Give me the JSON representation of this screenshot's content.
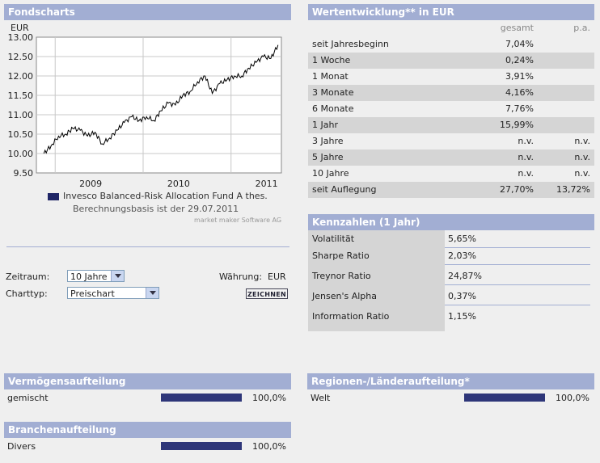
{
  "fondscharts": {
    "title": "Fondscharts",
    "currency_label": "EUR",
    "legend_label": "Invesco Balanced-Risk Allocation Fund A thes.",
    "basis_text": "Berechnungsbasis ist der 29.07.2011",
    "credit": "market maker Software AG"
  },
  "chart_data": {
    "type": "line",
    "title": "",
    "ylabel": "EUR",
    "ylim": [
      9.5,
      13.0
    ],
    "yticks": [
      "13.00",
      "12.50",
      "12.00",
      "11.50",
      "11.00",
      "10.50",
      "10.00",
      "9.50"
    ],
    "xticks": [
      "2009",
      "2010",
      "2011"
    ],
    "grid": true,
    "series": [
      {
        "name": "Invesco Balanced-Risk Allocation Fund A thes.",
        "color": "#000000",
        "x": [
          "2008-11",
          "2008-12",
          "2009-01",
          "2009-02",
          "2009-03",
          "2009-04",
          "2009-05",
          "2009-06",
          "2009-07",
          "2009-08",
          "2009-09",
          "2009-10",
          "2009-11",
          "2009-12",
          "2010-01",
          "2010-02",
          "2010-03",
          "2010-04",
          "2010-05",
          "2010-06",
          "2010-07",
          "2010-08",
          "2010-09",
          "2010-10",
          "2010-11",
          "2010-12",
          "2011-01",
          "2011-02",
          "2011-03",
          "2011-04",
          "2011-05",
          "2011-06",
          "2011-07"
        ],
        "values": [
          10.0,
          10.2,
          10.45,
          10.5,
          10.65,
          10.6,
          10.45,
          10.55,
          10.25,
          10.4,
          10.6,
          10.8,
          10.95,
          10.85,
          10.95,
          10.85,
          11.1,
          11.3,
          11.25,
          11.5,
          11.6,
          11.85,
          12.0,
          11.55,
          11.8,
          11.9,
          12.0,
          12.0,
          12.2,
          12.35,
          12.5,
          12.45,
          12.8
        ]
      }
    ]
  },
  "form": {
    "zeitraum_label": "Zeitraum:",
    "zeitraum_value": "10 Jahre",
    "charttyp_label": "Charttyp:",
    "charttyp_value": "Preischart",
    "waehrung_label": "Währung:",
    "waehrung_value": "EUR",
    "draw_button": "ZEICHNEN"
  },
  "wertentwicklung": {
    "title": "Wertentwicklung** in EUR",
    "col_gesamt": "gesamt",
    "col_pa": "p.a.",
    "rows": [
      {
        "label": "seit Jahresbeginn",
        "gesamt": "7,04%",
        "pa": ""
      },
      {
        "label": "1 Woche",
        "gesamt": "0,24%",
        "pa": ""
      },
      {
        "label": "1 Monat",
        "gesamt": "3,91%",
        "pa": ""
      },
      {
        "label": "3 Monate",
        "gesamt": "4,16%",
        "pa": ""
      },
      {
        "label": "6 Monate",
        "gesamt": "7,76%",
        "pa": ""
      },
      {
        "label": "1 Jahr",
        "gesamt": "15,99%",
        "pa": ""
      },
      {
        "label": "3 Jahre",
        "gesamt": "n.v.",
        "pa": "n.v."
      },
      {
        "label": "5 Jahre",
        "gesamt": "n.v.",
        "pa": "n.v."
      },
      {
        "label": "10 Jahre",
        "gesamt": "n.v.",
        "pa": "n.v."
      },
      {
        "label": "seit Auflegung",
        "gesamt": "27,70%",
        "pa": "13,72%"
      }
    ]
  },
  "kennzahlen": {
    "title": "Kennzahlen (1 Jahr)",
    "rows": [
      {
        "label": "Volatilität",
        "value": "5,65%"
      },
      {
        "label": "Sharpe Ratio",
        "value": "2,03%"
      },
      {
        "label": "Treynor Ratio",
        "value": "24,87%"
      },
      {
        "label": "Jensen's Alpha",
        "value": "0,37%"
      },
      {
        "label": "Information Ratio",
        "value": "1,15%"
      }
    ]
  },
  "vermoegen": {
    "title": "Vermögensaufteilung",
    "label": "gemischt",
    "value": "100,0%",
    "fraction": 1.0
  },
  "branchen": {
    "title": "Branchenaufteilung",
    "label": "Divers",
    "value": "100,0%",
    "fraction": 1.0
  },
  "regionen": {
    "title": "Regionen-/Länderaufteilung*",
    "label": "Welt",
    "value": "100,0%",
    "fraction": 1.0
  },
  "colors": {
    "header": "#a2aed3",
    "bar": "#2e3679",
    "shade": "#d5d5d5"
  }
}
